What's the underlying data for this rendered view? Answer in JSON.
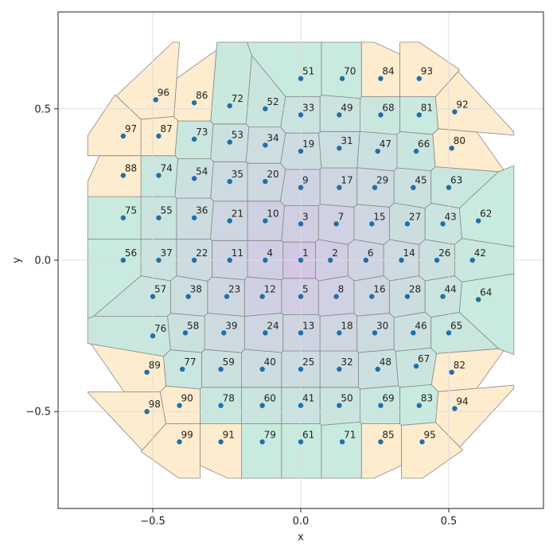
{
  "chart_data": {
    "type": "scatter",
    "title": "",
    "xlabel": "x",
    "ylabel": "y",
    "xlim": [
      -0.82,
      0.82
    ],
    "ylim": [
      -0.82,
      0.82
    ],
    "x_ticks": [
      -0.5,
      0.0,
      0.5
    ],
    "y_ticks": [
      -0.5,
      0.0,
      0.5
    ],
    "x_tick_labels": [
      "−0.5",
      "0.0",
      "0.5"
    ],
    "y_tick_labels": [
      "−0.5",
      "0.0",
      "0.5"
    ],
    "grid": true,
    "marker_color": "#1f6fa8",
    "cell_color_inner": "#c9b8e0",
    "cell_color_outer": "#fde9c4",
    "points": [
      {
        "label": "1",
        "x": 0.0,
        "y": 0.0
      },
      {
        "label": "2",
        "x": 0.1,
        "y": 0.0
      },
      {
        "label": "3",
        "x": 0.0,
        "y": 0.12
      },
      {
        "label": "4",
        "x": -0.12,
        "y": 0.0
      },
      {
        "label": "5",
        "x": 0.0,
        "y": -0.12
      },
      {
        "label": "6",
        "x": 0.22,
        "y": 0.0
      },
      {
        "label": "7",
        "x": 0.12,
        "y": 0.12
      },
      {
        "label": "8",
        "x": 0.12,
        "y": -0.12
      },
      {
        "label": "9",
        "x": 0.0,
        "y": 0.24
      },
      {
        "label": "10",
        "x": -0.12,
        "y": 0.13
      },
      {
        "label": "11",
        "x": -0.24,
        "y": 0.0
      },
      {
        "label": "12",
        "x": -0.13,
        "y": -0.12
      },
      {
        "label": "13",
        "x": 0.0,
        "y": -0.24
      },
      {
        "label": "14",
        "x": 0.34,
        "y": 0.0
      },
      {
        "label": "15",
        "x": 0.24,
        "y": 0.12
      },
      {
        "label": "16",
        "x": 0.24,
        "y": -0.12
      },
      {
        "label": "17",
        "x": 0.13,
        "y": 0.24
      },
      {
        "label": "18",
        "x": 0.13,
        "y": -0.24
      },
      {
        "label": "19",
        "x": 0.0,
        "y": 0.36
      },
      {
        "label": "20",
        "x": -0.12,
        "y": 0.26
      },
      {
        "label": "21",
        "x": -0.24,
        "y": 0.13
      },
      {
        "label": "22",
        "x": -0.36,
        "y": 0.0
      },
      {
        "label": "23",
        "x": -0.25,
        "y": -0.12
      },
      {
        "label": "24",
        "x": -0.12,
        "y": -0.24
      },
      {
        "label": "25",
        "x": 0.0,
        "y": -0.36
      },
      {
        "label": "26",
        "x": 0.46,
        "y": 0.0
      },
      {
        "label": "27",
        "x": 0.36,
        "y": 0.12
      },
      {
        "label": "28",
        "x": 0.36,
        "y": -0.12
      },
      {
        "label": "29",
        "x": 0.25,
        "y": 0.24
      },
      {
        "label": "30",
        "x": 0.25,
        "y": -0.24
      },
      {
        "label": "31",
        "x": 0.13,
        "y": 0.37
      },
      {
        "label": "32",
        "x": 0.13,
        "y": -0.36
      },
      {
        "label": "33",
        "x": 0.0,
        "y": 0.48
      },
      {
        "label": "34",
        "x": -0.12,
        "y": 0.38
      },
      {
        "label": "35",
        "x": -0.24,
        "y": 0.26
      },
      {
        "label": "36",
        "x": -0.36,
        "y": 0.14
      },
      {
        "label": "37",
        "x": -0.48,
        "y": 0.0
      },
      {
        "label": "38",
        "x": -0.38,
        "y": -0.12
      },
      {
        "label": "39",
        "x": -0.26,
        "y": -0.24
      },
      {
        "label": "40",
        "x": -0.13,
        "y": -0.36
      },
      {
        "label": "41",
        "x": 0.0,
        "y": -0.48
      },
      {
        "label": "42",
        "x": 0.58,
        "y": 0.0
      },
      {
        "label": "43",
        "x": 0.48,
        "y": 0.12
      },
      {
        "label": "44",
        "x": 0.48,
        "y": -0.12
      },
      {
        "label": "45",
        "x": 0.38,
        "y": 0.24
      },
      {
        "label": "46",
        "x": 0.38,
        "y": -0.24
      },
      {
        "label": "47",
        "x": 0.26,
        "y": 0.36
      },
      {
        "label": "48",
        "x": 0.26,
        "y": -0.36
      },
      {
        "label": "49",
        "x": 0.13,
        "y": 0.48
      },
      {
        "label": "50",
        "x": 0.13,
        "y": -0.48
      },
      {
        "label": "51",
        "x": 0.0,
        "y": 0.6
      },
      {
        "label": "52",
        "x": -0.12,
        "y": 0.5
      },
      {
        "label": "53",
        "x": -0.24,
        "y": 0.39
      },
      {
        "label": "54",
        "x": -0.36,
        "y": 0.27
      },
      {
        "label": "55",
        "x": -0.48,
        "y": 0.14
      },
      {
        "label": "56",
        "x": -0.6,
        "y": 0.0
      },
      {
        "label": "57",
        "x": -0.5,
        "y": -0.12
      },
      {
        "label": "58",
        "x": -0.39,
        "y": -0.24
      },
      {
        "label": "59",
        "x": -0.27,
        "y": -0.36
      },
      {
        "label": "60",
        "x": -0.13,
        "y": -0.48
      },
      {
        "label": "61",
        "x": 0.0,
        "y": -0.6
      },
      {
        "label": "62",
        "x": 0.6,
        "y": 0.13
      },
      {
        "label": "63",
        "x": 0.5,
        "y": 0.24
      },
      {
        "label": "64",
        "x": 0.6,
        "y": -0.13
      },
      {
        "label": "65",
        "x": 0.5,
        "y": -0.24
      },
      {
        "label": "66",
        "x": 0.39,
        "y": 0.36
      },
      {
        "label": "67",
        "x": 0.39,
        "y": -0.35
      },
      {
        "label": "68",
        "x": 0.27,
        "y": 0.48
      },
      {
        "label": "69",
        "x": 0.27,
        "y": -0.48
      },
      {
        "label": "70",
        "x": 0.14,
        "y": 0.6
      },
      {
        "label": "71",
        "x": 0.14,
        "y": -0.6
      },
      {
        "label": "72",
        "x": -0.24,
        "y": 0.51
      },
      {
        "label": "73",
        "x": -0.36,
        "y": 0.4
      },
      {
        "label": "74",
        "x": -0.48,
        "y": 0.28
      },
      {
        "label": "75",
        "x": -0.6,
        "y": 0.14
      },
      {
        "label": "76",
        "x": -0.5,
        "y": -0.25
      },
      {
        "label": "77",
        "x": -0.4,
        "y": -0.36
      },
      {
        "label": "78",
        "x": -0.27,
        "y": -0.48
      },
      {
        "label": "79",
        "x": -0.13,
        "y": -0.6
      },
      {
        "label": "80",
        "x": 0.51,
        "y": 0.37
      },
      {
        "label": "81",
        "x": 0.4,
        "y": 0.48
      },
      {
        "label": "82",
        "x": 0.51,
        "y": -0.37
      },
      {
        "label": "83",
        "x": 0.4,
        "y": -0.48
      },
      {
        "label": "84",
        "x": 0.27,
        "y": 0.6
      },
      {
        "label": "85",
        "x": 0.27,
        "y": -0.6
      },
      {
        "label": "86",
        "x": -0.36,
        "y": 0.52
      },
      {
        "label": "87",
        "x": -0.48,
        "y": 0.41
      },
      {
        "label": "88",
        "x": -0.6,
        "y": 0.28
      },
      {
        "label": "89",
        "x": -0.52,
        "y": -0.37
      },
      {
        "label": "90",
        "x": -0.41,
        "y": -0.48
      },
      {
        "label": "91",
        "x": -0.27,
        "y": -0.6
      },
      {
        "label": "92",
        "x": 0.52,
        "y": 0.49
      },
      {
        "label": "93",
        "x": 0.4,
        "y": 0.6
      },
      {
        "label": "94",
        "x": 0.52,
        "y": -0.49
      },
      {
        "label": "95",
        "x": 0.41,
        "y": -0.6
      },
      {
        "label": "96",
        "x": -0.49,
        "y": 0.53
      },
      {
        "label": "97",
        "x": -0.6,
        "y": 0.41
      },
      {
        "label": "98",
        "x": -0.52,
        "y": -0.5
      },
      {
        "label": "99",
        "x": -0.41,
        "y": -0.6
      }
    ]
  }
}
